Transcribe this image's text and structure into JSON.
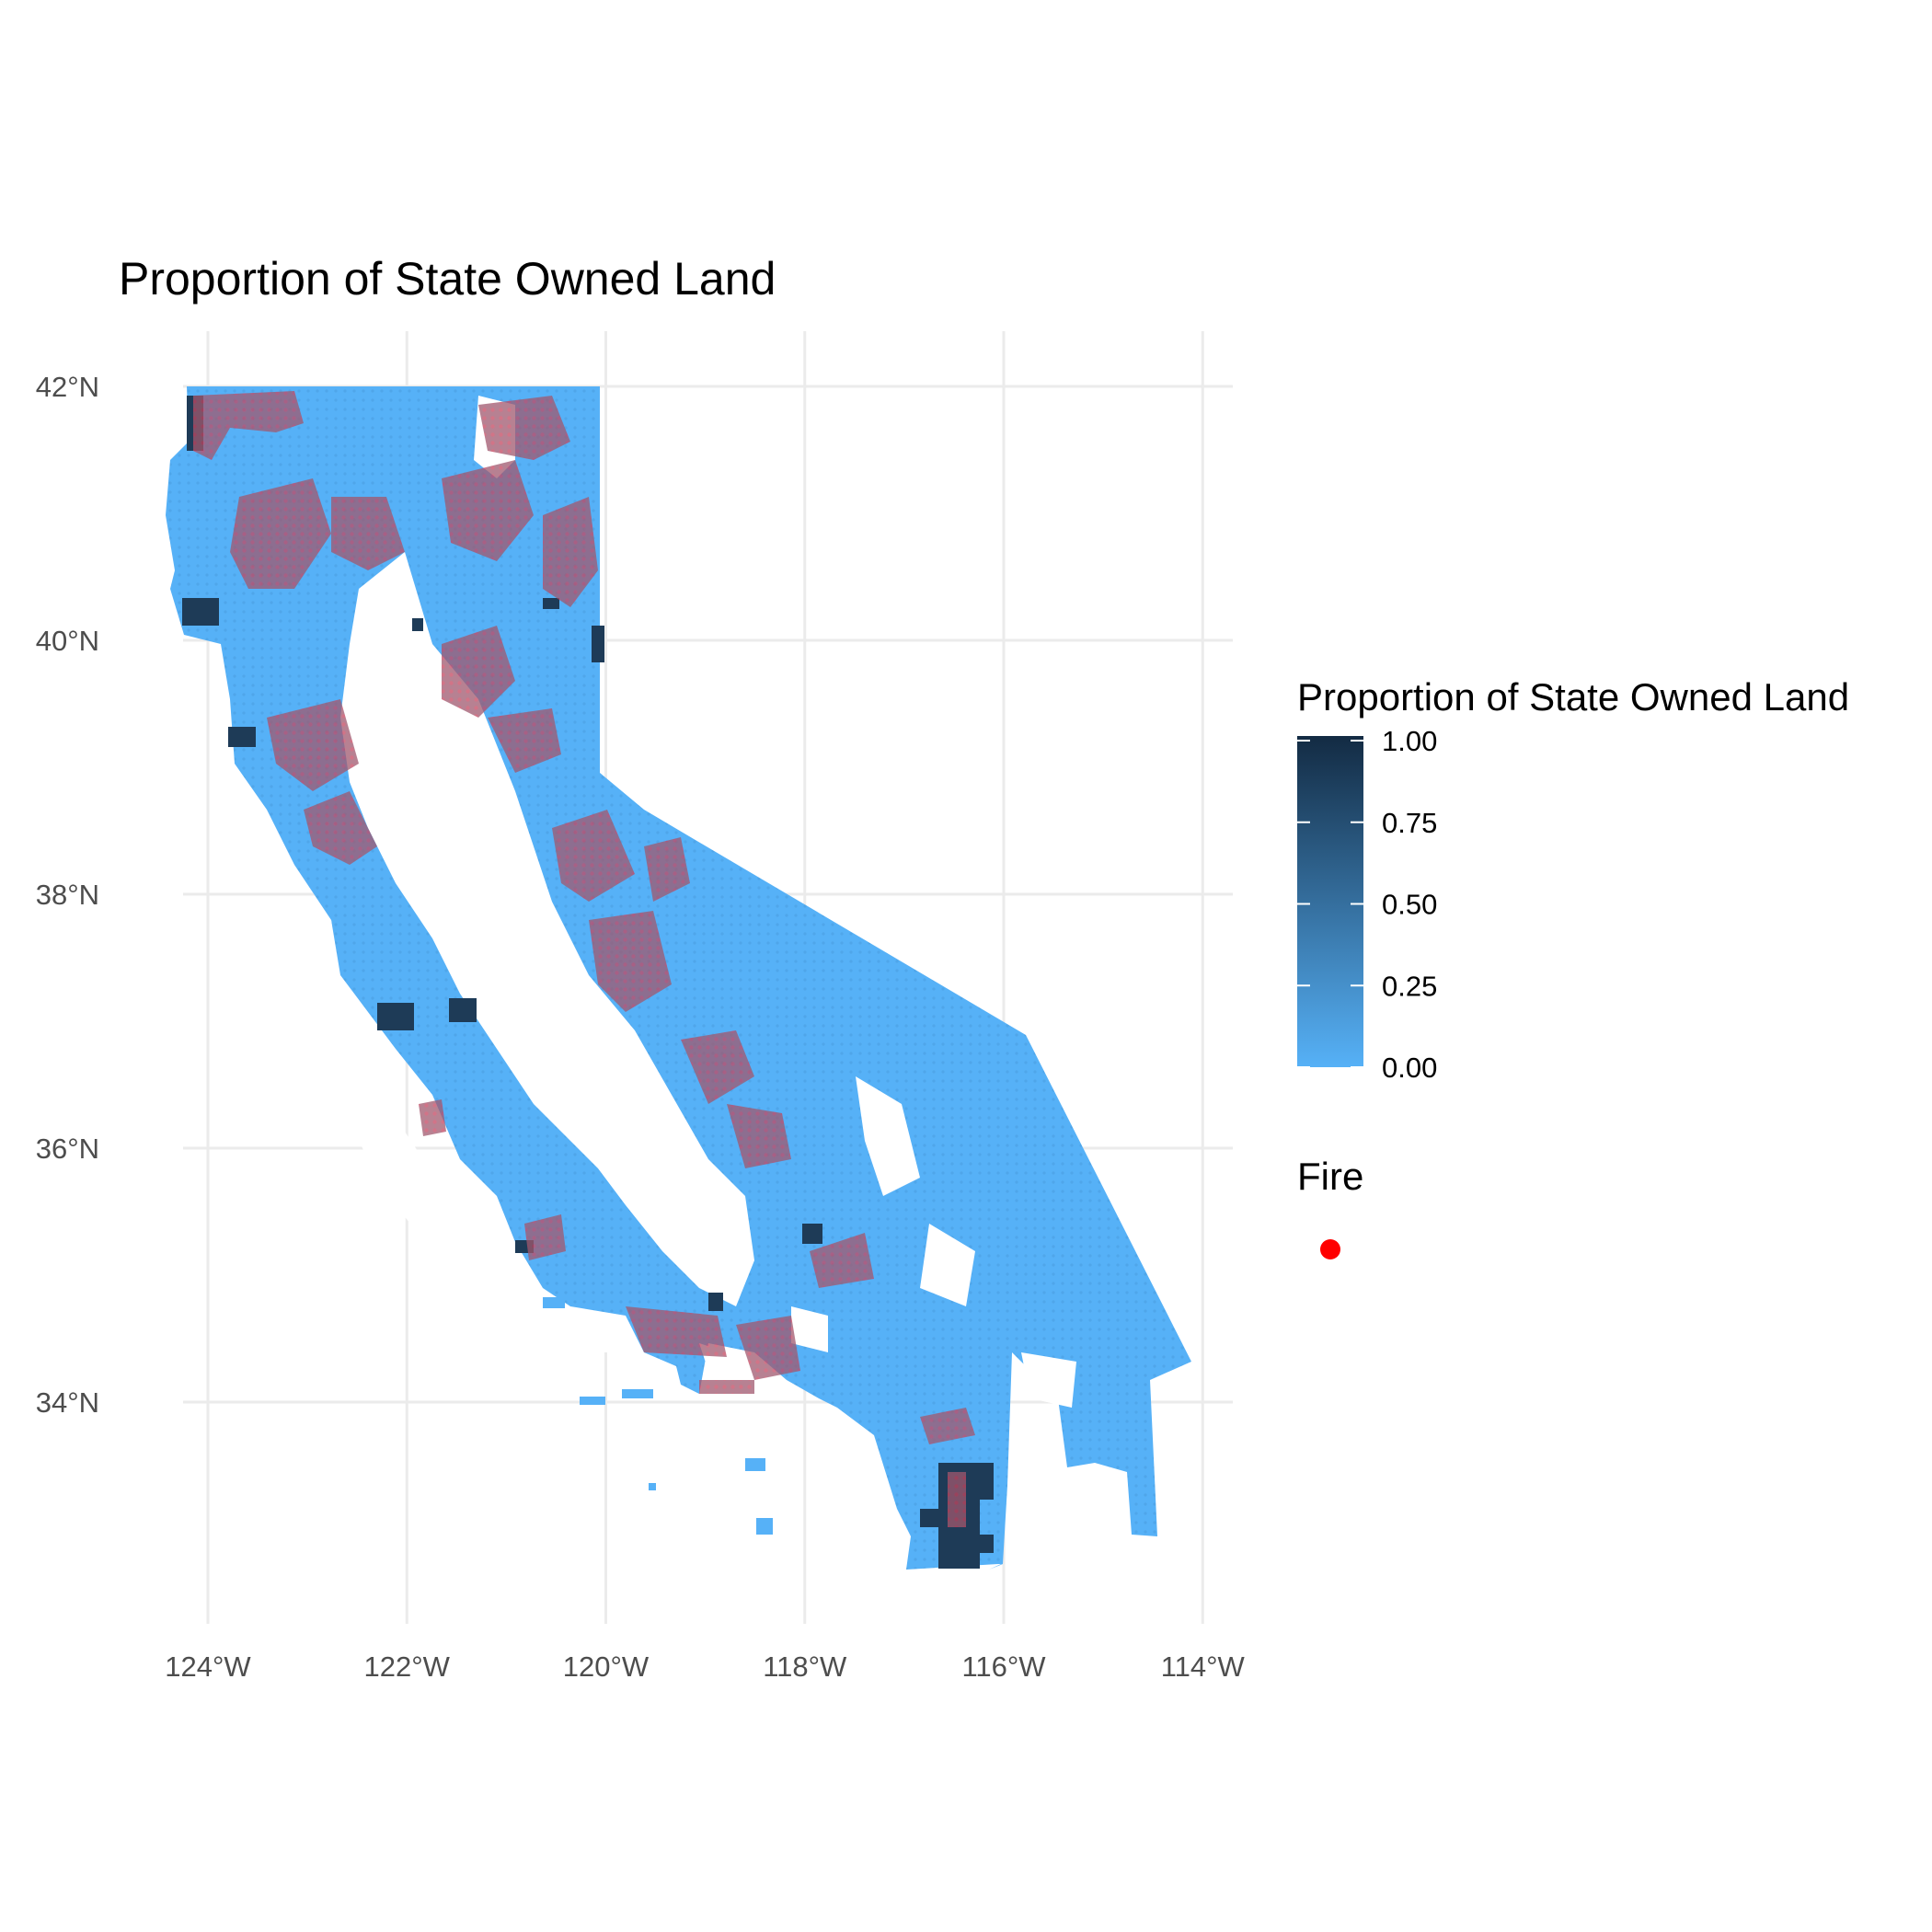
{
  "map": {
    "title": "Proportion of State Owned Land",
    "x_ticks": [
      "124°W",
      "122°W",
      "120°W",
      "118°W",
      "116°W",
      "114°W"
    ],
    "y_ticks": [
      "42°N",
      "40°N",
      "38°N",
      "36°N",
      "34°N"
    ],
    "legend": {
      "fill_title": "Proportion of State Owned Land",
      "fill_ticks": [
        "1.00",
        "0.75",
        "0.50",
        "0.25",
        "0.00"
      ],
      "fill_colors": {
        "low": "#56B1F7",
        "high": "#132B43"
      },
      "fire_title": "Fire",
      "fire_color": "#ff0000"
    }
  },
  "chart_data": {
    "type": "map",
    "region": "California",
    "title": "Proportion of State Owned Land",
    "x_axis": {
      "ticks": [
        -124,
        -122,
        -120,
        -118,
        -116,
        -114
      ],
      "range": [
        -124.9,
        -113.7
      ]
    },
    "y_axis": {
      "ticks": [
        42,
        40,
        38,
        36,
        34
      ],
      "range": [
        32.3,
        42.5
      ]
    },
    "fill_scale": {
      "name": "Proportion of State Owned Land",
      "min": 0,
      "max": 1,
      "breaks": [
        0,
        0.25,
        0.5,
        0.75,
        1
      ]
    },
    "fire_legend": "Fire",
    "grid": true,
    "legend_position": "right"
  }
}
